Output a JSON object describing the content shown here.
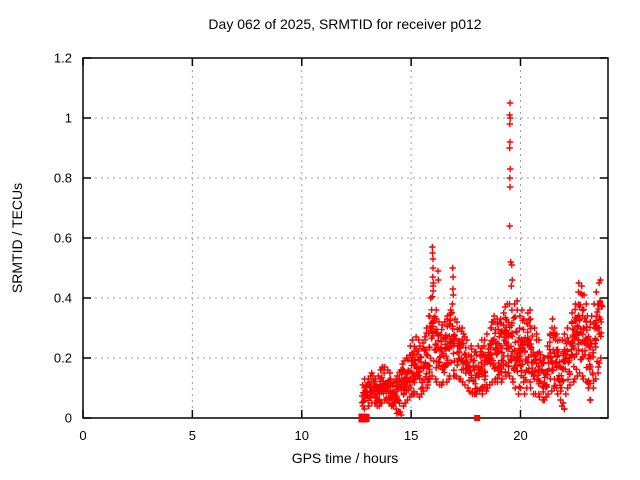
{
  "window": {
    "title": "Day 062 of 2025, SRMTID for receiver p012"
  },
  "chart_data": {
    "type": "scatter",
    "title": "Day 062 of 2025, SRMTID for receiver p012",
    "xlabel": "GPS time / hours",
    "ylabel": "SRMTID / TECUs",
    "xlim": [
      0,
      24
    ],
    "ylim": [
      0,
      1.2
    ],
    "xticks": [
      0,
      5,
      10,
      15,
      20
    ],
    "xtick_labels": [
      "0",
      "5",
      "10",
      "15",
      "20"
    ],
    "yticks": [
      0,
      0.2,
      0.4,
      0.6,
      0.8,
      1,
      1.2
    ],
    "ytick_labels": [
      "0",
      "0.2",
      "0.4",
      "0.6",
      "0.8",
      "1",
      "1.2"
    ],
    "grid": true,
    "legend": "none",
    "marker": "plus",
    "point_color": "#ff0000",
    "grid_color": "#9e9e9e",
    "border_color": "#000000",
    "background_color": "#ffffff",
    "series": [
      {
        "name": "srmtid-cloud-bins",
        "note": "dense point cloud summarized as [hour, ymin, ymax, count] bins of 0.1 h",
        "bins": [
          [
            12.8,
            0.04,
            0.11,
            7
          ],
          [
            12.9,
            0.03,
            0.13,
            9
          ],
          [
            13.0,
            0.04,
            0.13,
            9
          ],
          [
            13.1,
            0.04,
            0.14,
            9
          ],
          [
            13.2,
            0.05,
            0.15,
            9
          ],
          [
            13.3,
            0.05,
            0.14,
            9
          ],
          [
            13.4,
            0.04,
            0.13,
            8
          ],
          [
            13.5,
            0.04,
            0.14,
            8
          ],
          [
            13.6,
            0.05,
            0.16,
            9
          ],
          [
            13.7,
            0.05,
            0.17,
            9
          ],
          [
            13.8,
            0.06,
            0.17,
            9
          ],
          [
            13.9,
            0.06,
            0.16,
            9
          ],
          [
            14.0,
            0.05,
            0.15,
            8
          ],
          [
            14.1,
            0.04,
            0.13,
            8
          ],
          [
            14.2,
            0.04,
            0.12,
            8
          ],
          [
            14.3,
            0.03,
            0.13,
            8
          ],
          [
            14.4,
            0.02,
            0.14,
            8
          ],
          [
            14.5,
            0.02,
            0.16,
            9
          ],
          [
            14.6,
            0.04,
            0.18,
            9
          ],
          [
            14.7,
            0.05,
            0.19,
            10
          ],
          [
            14.8,
            0.06,
            0.2,
            10
          ],
          [
            14.9,
            0.07,
            0.21,
            10
          ],
          [
            15.0,
            0.08,
            0.24,
            11
          ],
          [
            15.1,
            0.08,
            0.26,
            11
          ],
          [
            15.2,
            0.08,
            0.27,
            11
          ],
          [
            15.3,
            0.08,
            0.26,
            10
          ],
          [
            15.4,
            0.07,
            0.24,
            10
          ],
          [
            15.5,
            0.08,
            0.25,
            10
          ],
          [
            15.6,
            0.09,
            0.27,
            10
          ],
          [
            15.7,
            0.1,
            0.3,
            10
          ],
          [
            15.8,
            0.11,
            0.34,
            11
          ],
          [
            15.9,
            0.13,
            0.4,
            11
          ],
          [
            16.0,
            0.14,
            0.44,
            12
          ],
          [
            16.1,
            0.13,
            0.36,
            11
          ],
          [
            16.2,
            0.12,
            0.33,
            11
          ],
          [
            16.3,
            0.11,
            0.32,
            10
          ],
          [
            16.4,
            0.11,
            0.31,
            10
          ],
          [
            16.5,
            0.12,
            0.32,
            10
          ],
          [
            16.6,
            0.12,
            0.33,
            10
          ],
          [
            16.7,
            0.13,
            0.34,
            10
          ],
          [
            16.8,
            0.14,
            0.36,
            11
          ],
          [
            16.9,
            0.14,
            0.38,
            11
          ],
          [
            17.0,
            0.14,
            0.33,
            10
          ],
          [
            17.1,
            0.14,
            0.32,
            10
          ],
          [
            17.2,
            0.13,
            0.3,
            10
          ],
          [
            17.3,
            0.13,
            0.3,
            9
          ],
          [
            17.4,
            0.12,
            0.28,
            9
          ],
          [
            17.5,
            0.11,
            0.27,
            9
          ],
          [
            17.6,
            0.1,
            0.26,
            9
          ],
          [
            17.7,
            0.09,
            0.24,
            8
          ],
          [
            17.8,
            0.08,
            0.23,
            8
          ],
          [
            17.9,
            0.08,
            0.22,
            8
          ],
          [
            18.0,
            0.08,
            0.22,
            8
          ],
          [
            18.1,
            0.09,
            0.24,
            9
          ],
          [
            18.2,
            0.1,
            0.26,
            9
          ],
          [
            18.3,
            0.08,
            0.24,
            9
          ],
          [
            18.4,
            0.09,
            0.26,
            10
          ],
          [
            18.5,
            0.1,
            0.28,
            10
          ],
          [
            18.6,
            0.11,
            0.3,
            10
          ],
          [
            18.7,
            0.12,
            0.32,
            11
          ],
          [
            18.8,
            0.12,
            0.34,
            11
          ],
          [
            18.9,
            0.13,
            0.33,
            11
          ],
          [
            19.0,
            0.12,
            0.32,
            11
          ],
          [
            19.1,
            0.12,
            0.33,
            11
          ],
          [
            19.2,
            0.13,
            0.35,
            11
          ],
          [
            19.3,
            0.14,
            0.37,
            12
          ],
          [
            19.4,
            0.15,
            0.38,
            12
          ],
          [
            19.5,
            0.14,
            0.38,
            12
          ],
          [
            19.6,
            0.13,
            0.36,
            12
          ],
          [
            19.7,
            0.12,
            0.38,
            12
          ],
          [
            19.8,
            0.1,
            0.39,
            12
          ],
          [
            19.9,
            0.08,
            0.36,
            12
          ],
          [
            20.0,
            0.1,
            0.34,
            12
          ],
          [
            20.1,
            0.12,
            0.36,
            12
          ],
          [
            20.2,
            0.08,
            0.33,
            11
          ],
          [
            20.3,
            0.1,
            0.35,
            11
          ],
          [
            20.4,
            0.12,
            0.36,
            11
          ],
          [
            20.5,
            0.1,
            0.33,
            11
          ],
          [
            20.6,
            0.08,
            0.3,
            10
          ],
          [
            20.7,
            0.08,
            0.28,
            10
          ],
          [
            20.8,
            0.08,
            0.26,
            9
          ],
          [
            20.9,
            0.07,
            0.22,
            9
          ],
          [
            21.0,
            0.06,
            0.2,
            8
          ],
          [
            21.1,
            0.06,
            0.2,
            8
          ],
          [
            21.2,
            0.07,
            0.24,
            9
          ],
          [
            21.3,
            0.08,
            0.28,
            9
          ],
          [
            21.4,
            0.09,
            0.3,
            10
          ],
          [
            21.5,
            0.1,
            0.33,
            10
          ],
          [
            21.6,
            0.1,
            0.3,
            10
          ],
          [
            21.7,
            0.08,
            0.28,
            10
          ],
          [
            21.8,
            0.06,
            0.26,
            10
          ],
          [
            21.9,
            0.04,
            0.26,
            10
          ],
          [
            22.0,
            0.03,
            0.28,
            10
          ],
          [
            22.1,
            0.08,
            0.3,
            10
          ],
          [
            22.2,
            0.1,
            0.3,
            10
          ],
          [
            22.3,
            0.11,
            0.32,
            11
          ],
          [
            22.4,
            0.12,
            0.35,
            11
          ],
          [
            22.5,
            0.13,
            0.38,
            11
          ],
          [
            22.6,
            0.14,
            0.42,
            12
          ],
          [
            22.7,
            0.15,
            0.45,
            12
          ],
          [
            22.8,
            0.14,
            0.44,
            12
          ],
          [
            22.9,
            0.13,
            0.41,
            11
          ],
          [
            23.0,
            0.12,
            0.38,
            11
          ],
          [
            23.1,
            0.1,
            0.34,
            10
          ],
          [
            23.2,
            0.06,
            0.32,
            10
          ],
          [
            23.3,
            0.1,
            0.34,
            10
          ],
          [
            23.4,
            0.13,
            0.38,
            10
          ],
          [
            23.5,
            0.15,
            0.42,
            11
          ],
          [
            23.6,
            0.17,
            0.45,
            11
          ],
          [
            23.7,
            0.2,
            0.46,
            9
          ]
        ]
      },
      {
        "name": "srmtid-outlier-points",
        "note": "individually visible points [hour, TECUs]",
        "points": [
          [
            15.97,
            0.57
          ],
          [
            15.98,
            0.55
          ],
          [
            16.0,
            0.53
          ],
          [
            16.0,
            0.5
          ],
          [
            15.99,
            0.47
          ],
          [
            16.02,
            0.45
          ],
          [
            16.23,
            0.49
          ],
          [
            16.24,
            0.46
          ],
          [
            16.9,
            0.5
          ],
          [
            16.92,
            0.47
          ],
          [
            16.91,
            0.43
          ],
          [
            16.93,
            0.41
          ],
          [
            19.52,
            1.05
          ],
          [
            19.5,
            1.01
          ],
          [
            19.53,
            1.0
          ],
          [
            19.51,
            0.98
          ],
          [
            19.52,
            0.92
          ],
          [
            19.5,
            0.9
          ],
          [
            19.53,
            0.83
          ],
          [
            19.51,
            0.8
          ],
          [
            19.52,
            0.77
          ],
          [
            19.5,
            0.64
          ],
          [
            19.55,
            0.52
          ],
          [
            19.6,
            0.51
          ],
          [
            19.62,
            0.46
          ],
          [
            19.58,
            0.44
          ],
          [
            14.35,
            0.015
          ],
          [
            14.45,
            0.02
          ],
          [
            14.55,
            0.01
          ],
          [
            21.95,
            0.05
          ],
          [
            22.0,
            0.03
          ],
          [
            23.2,
            0.06
          ]
        ]
      },
      {
        "name": "baseline-square-markers",
        "note": "filled squares on the y=0 axis: [hour, pixel size]",
        "squares": [
          [
            12.8,
            9
          ],
          [
            12.92,
            8
          ],
          [
            18.02,
            6
          ]
        ]
      }
    ]
  }
}
